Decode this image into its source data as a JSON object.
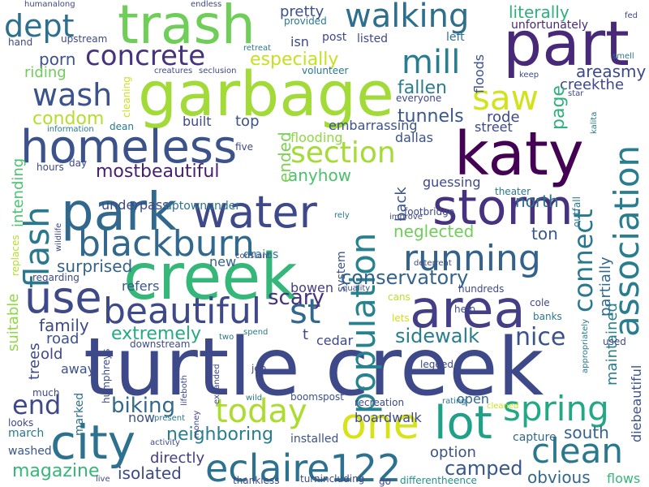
{
  "background": "#ffffff",
  "palette": {
    "dark_purple": "#440154",
    "purple": "#482878",
    "indigo": "#3e4989",
    "blue": "#31688e",
    "teal": "#26828e",
    "green_teal": "#1f9e89",
    "green": "#35b779",
    "light_green": "#6ece58",
    "lime": "#b5de2b",
    "yellow": "#fde725"
  },
  "words": [
    {
      "text": "turtle creek",
      "color": "#3e4989"
    },
    {
      "text": "katy",
      "color": "#440154"
    },
    {
      "text": "garbage",
      "color": "#a2da37"
    },
    {
      "text": "creek",
      "color": "#35b779"
    },
    {
      "text": "trash",
      "color": "#6ece58"
    },
    {
      "text": "part",
      "color": "#482878"
    },
    {
      "text": "park",
      "color": "#31688e"
    },
    {
      "text": "water",
      "color": "#3e4989"
    },
    {
      "text": "homeless",
      "color": "#3b528b"
    },
    {
      "text": "area",
      "color": "#433e85"
    },
    {
      "text": "storm",
      "color": "#46327e"
    },
    {
      "text": "lot",
      "color": "#1fa187"
    },
    {
      "text": "one",
      "color": "#d8e219"
    },
    {
      "text": "city",
      "color": "#2c728e"
    },
    {
      "text": "use",
      "color": "#3e4989"
    },
    {
      "text": "population",
      "color": "#26828e"
    },
    {
      "text": "association",
      "color": "#287d8e"
    },
    {
      "text": "eclaire122",
      "color": "#2c728e"
    },
    {
      "text": "beautiful",
      "color": "#3e4989"
    },
    {
      "text": "blackburn",
      "color": "#31688e"
    },
    {
      "text": "running",
      "color": "#33638d"
    },
    {
      "text": "flash",
      "color": "#2a788e"
    },
    {
      "text": "walking",
      "color": "#2d708e"
    },
    {
      "text": "mill",
      "color": "#287d8e"
    },
    {
      "text": "saw",
      "color": "#d2e21b"
    },
    {
      "text": "st",
      "color": "#31688e"
    },
    {
      "text": "section",
      "color": "#a5db36"
    },
    {
      "text": "today",
      "color": "#addc30"
    },
    {
      "text": "spring",
      "color": "#22a884"
    },
    {
      "text": "clean",
      "color": "#2a788e"
    },
    {
      "text": "wash",
      "color": "#3b528b"
    },
    {
      "text": "concrete",
      "color": "#46327e"
    },
    {
      "text": "dept",
      "color": "#2d708e"
    },
    {
      "text": "connect",
      "color": "#2a788e"
    },
    {
      "text": "end",
      "color": "#3e4989"
    },
    {
      "text": "nice",
      "color": "#3b528b"
    },
    {
      "text": "sidewalk",
      "color": "#287d8e"
    },
    {
      "text": "camped",
      "color": "#38588c"
    },
    {
      "text": "magazine",
      "color": "#35b779"
    },
    {
      "text": "biking",
      "color": "#31688e"
    },
    {
      "text": "extremely",
      "color": "#25ab82"
    },
    {
      "text": "neighboring",
      "color": "#287d8e"
    },
    {
      "text": "conservatory",
      "color": "#33638d"
    },
    {
      "text": "scary",
      "color": "#46327e"
    },
    {
      "text": "mostbeautiful",
      "color": "#481f70"
    },
    {
      "text": "especially",
      "color": "#c8e020"
    },
    {
      "text": "literally",
      "color": "#2db27d"
    },
    {
      "text": "fallen",
      "color": "#287d8e"
    },
    {
      "text": "tunnels",
      "color": "#38588c"
    },
    {
      "text": "condom",
      "color": "#b5de2b"
    },
    {
      "text": "porn",
      "color": "#3b528b"
    },
    {
      "text": "riding",
      "color": "#6ece58"
    },
    {
      "text": "surprised",
      "color": "#33638d"
    },
    {
      "text": "neglected",
      "color": "#6ece58"
    },
    {
      "text": "anyhow",
      "color": "#4ac16d"
    },
    {
      "text": "ended",
      "color": "#7ad151"
    },
    {
      "text": "areasmy",
      "color": "#3e4989"
    },
    {
      "text": "creekthe",
      "color": "#3e4989"
    },
    {
      "text": "page",
      "color": "#2db27d"
    },
    {
      "text": "back",
      "color": "#3b528b"
    },
    {
      "text": "ton",
      "color": "#38588c"
    },
    {
      "text": "north",
      "color": "#2d708e"
    },
    {
      "text": "south",
      "color": "#33638d"
    },
    {
      "text": "obvious",
      "color": "#31688e"
    },
    {
      "text": "option",
      "color": "#3b528b"
    },
    {
      "text": "isolated",
      "color": "#3e4989"
    },
    {
      "text": "directly",
      "color": "#433e85"
    },
    {
      "text": "family",
      "color": "#3e4989"
    },
    {
      "text": "trees",
      "color": "#3e4989"
    },
    {
      "text": "suitable",
      "color": "#8fd744"
    },
    {
      "text": "intending",
      "color": "#4ac16d"
    },
    {
      "text": "old",
      "color": "#3e4989"
    },
    {
      "text": "away",
      "color": "#3b528b"
    },
    {
      "text": "road",
      "color": "#3b528b"
    },
    {
      "text": "refers",
      "color": "#38588c"
    },
    {
      "text": "top",
      "color": "#3b528b"
    },
    {
      "text": "built",
      "color": "#3e4989"
    },
    {
      "text": "underpass",
      "color": "#3e4989"
    },
    {
      "text": "uptownunder",
      "color": "#2c728e"
    },
    {
      "text": "flooding",
      "color": "#8fd744"
    },
    {
      "text": "embarrassing",
      "color": "#3b528b"
    },
    {
      "text": "street",
      "color": "#3e4989"
    },
    {
      "text": "rode",
      "color": "#3e4989"
    },
    {
      "text": "dallas",
      "color": "#3b528b"
    },
    {
      "text": "guessing",
      "color": "#3e4989"
    },
    {
      "text": "pretty",
      "color": "#3b528b"
    },
    {
      "text": "isn",
      "color": "#3e4989"
    },
    {
      "text": "post",
      "color": "#3e4989"
    },
    {
      "text": "listed",
      "color": "#3e4989"
    },
    {
      "text": "left",
      "color": "#2d708e"
    },
    {
      "text": "floods",
      "color": "#3b528b"
    },
    {
      "text": "unfortunately",
      "color": "#482878"
    },
    {
      "text": "partially",
      "color": "#31688e"
    },
    {
      "text": "maintained",
      "color": "#287d8e"
    },
    {
      "text": "diebeautiful",
      "color": "#3b528b"
    },
    {
      "text": "flows",
      "color": "#35b779"
    },
    {
      "text": "cedar",
      "color": "#3e4989"
    },
    {
      "text": "bowen",
      "color": "#433e85"
    },
    {
      "text": "new",
      "color": "#33638d"
    },
    {
      "text": "drains",
      "color": "#2a788e"
    },
    {
      "text": "system",
      "color": "#3b528b"
    },
    {
      "text": "marked",
      "color": "#2d708e"
    },
    {
      "text": "now",
      "color": "#3b528b"
    },
    {
      "text": "march",
      "color": "#2a788e"
    },
    {
      "text": "washed",
      "color": "#38588c"
    },
    {
      "text": "boardwalk",
      "color": "#3e4989"
    },
    {
      "text": "installed",
      "color": "#3b528b"
    },
    {
      "text": "open",
      "color": "#31688e"
    },
    {
      "text": "capture",
      "color": "#31688e"
    },
    {
      "text": "recreation",
      "color": "#3e4989"
    },
    {
      "text": "booms",
      "color": "#3b528b"
    },
    {
      "text": "post",
      "color": "#3b528b"
    },
    {
      "text": "job",
      "color": "#3e4989"
    },
    {
      "text": "thankless",
      "color": "#3e4989"
    },
    {
      "text": "turnincluding",
      "color": "#3e4989"
    },
    {
      "text": "differentheence",
      "color": "#21918c"
    },
    {
      "text": "t",
      "color": "#3e4989"
    },
    {
      "text": "used",
      "color": "#3e4989"
    },
    {
      "text": "cole",
      "color": "#3e4989"
    },
    {
      "text": "banks",
      "color": "#2a788e"
    },
    {
      "text": "hundreds",
      "color": "#3e4989"
    },
    {
      "text": "cans",
      "color": "#bddf26"
    },
    {
      "text": "help",
      "color": "#3e4989"
    },
    {
      "text": "lets",
      "color": "#d0e11c"
    },
    {
      "text": "humanalong",
      "color": "#3e4989"
    },
    {
      "text": "hand",
      "color": "#3e4989"
    },
    {
      "text": "upstream",
      "color": "#3e4989"
    },
    {
      "text": "endless",
      "color": "#3e4989"
    },
    {
      "text": "provided",
      "color": "#2a788e"
    },
    {
      "text": "volunteer",
      "color": "#2a788e"
    },
    {
      "text": "retreat",
      "color": "#2a788e"
    },
    {
      "text": "seclusion",
      "color": "#3e4989"
    },
    {
      "text": "creatures",
      "color": "#3e4989"
    },
    {
      "text": "cleaning",
      "color": "#cde11d"
    },
    {
      "text": "everyone",
      "color": "#3e4989"
    },
    {
      "text": "dean",
      "color": "#2a788e"
    },
    {
      "text": "information",
      "color": "#2a788e"
    },
    {
      "text": "hours",
      "color": "#3e4989"
    },
    {
      "text": "day",
      "color": "#3e4989"
    },
    {
      "text": "five",
      "color": "#3e4989"
    },
    {
      "text": "footbridge",
      "color": "#3e4989"
    },
    {
      "text": "theater",
      "color": "#2a788e"
    },
    {
      "text": "rely",
      "color": "#2a788e"
    },
    {
      "text": "improve",
      "color": "#3e4989"
    },
    {
      "text": "deterrent",
      "color": "#3e4989"
    },
    {
      "text": "outfall",
      "color": "#2a788e"
    },
    {
      "text": "kalita",
      "color": "#2a788e"
    },
    {
      "text": "star",
      "color": "#3e4989"
    },
    {
      "text": "keep",
      "color": "#3e4989"
    },
    {
      "text": "smell",
      "color": "#2a788e"
    },
    {
      "text": "fed",
      "color": "#3e4989"
    },
    {
      "text": "replaces",
      "color": "#b5de2b"
    },
    {
      "text": "wildlife",
      "color": "#3e4989"
    },
    {
      "text": "regarding",
      "color": "#3e4989"
    },
    {
      "text": "constant",
      "color": "#3e4989"
    },
    {
      "text": "quality",
      "color": "#3e4989"
    },
    {
      "text": "spend",
      "color": "#2a788e"
    },
    {
      "text": "two",
      "color": "#2a788e"
    },
    {
      "text": "downstream",
      "color": "#3e4989"
    },
    {
      "text": "humphreys",
      "color": "#3e4989"
    },
    {
      "text": "lifeboth",
      "color": "#3e4989"
    },
    {
      "text": "money",
      "color": "#3e4989"
    },
    {
      "text": "expanded",
      "color": "#3e4989"
    },
    {
      "text": "wild",
      "color": "#2a788e"
    },
    {
      "text": "legged",
      "color": "#3e4989"
    },
    {
      "text": "rating",
      "color": "#2a788e"
    },
    {
      "text": "cleaned",
      "color": "#cde11d"
    },
    {
      "text": "appropriately",
      "color": "#2a788e"
    },
    {
      "text": "much",
      "color": "#3e4989"
    },
    {
      "text": "looks",
      "color": "#3e4989"
    },
    {
      "text": "present",
      "color": "#2a788e"
    },
    {
      "text": "activity",
      "color": "#3e4989"
    },
    {
      "text": "go",
      "color": "#3e4989"
    },
    {
      "text": "live",
      "color": "#3e4989"
    }
  ]
}
